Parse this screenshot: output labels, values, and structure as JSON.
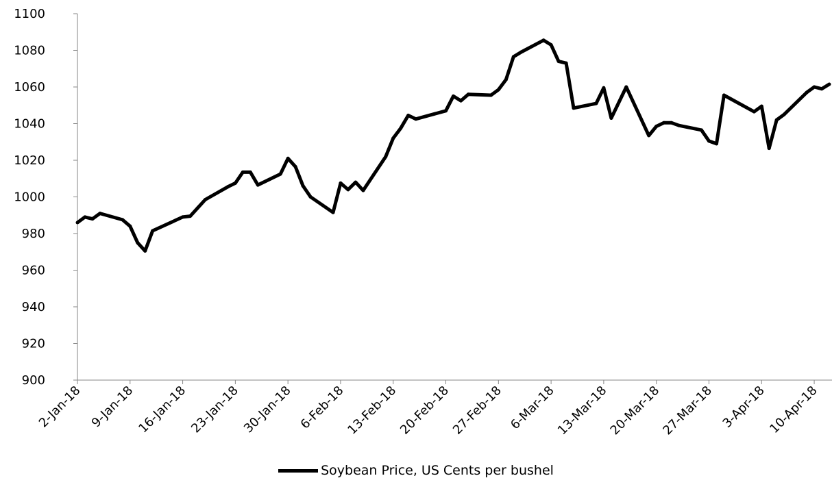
{
  "chart_data": {
    "type": "line",
    "title": "",
    "xlabel": "",
    "ylabel": "",
    "ylim": [
      900,
      1100
    ],
    "yticks": [
      900,
      920,
      940,
      960,
      980,
      1000,
      1020,
      1040,
      1060,
      1080,
      1100
    ],
    "xticks": [
      "2-Jan-18",
      "9-Jan-18",
      "16-Jan-18",
      "23-Jan-18",
      "30-Jan-18",
      "6-Feb-18",
      "13-Feb-18",
      "20-Feb-18",
      "27-Feb-18",
      "6-Mar-18",
      "13-Mar-18",
      "20-Mar-18",
      "27-Mar-18",
      "3-Apr-18",
      "10-Apr-18"
    ],
    "grid": false,
    "legend_position": "bottom",
    "series": [
      {
        "name": "Soybean Price, US Cents per bushel",
        "color": "#000000",
        "points": [
          [
            "2018-01-02",
            986
          ],
          [
            "2018-01-03",
            989
          ],
          [
            "2018-01-04",
            988
          ],
          [
            "2018-01-05",
            991
          ],
          [
            "2018-01-08",
            987.5
          ],
          [
            "2018-01-09",
            984
          ],
          [
            "2018-01-10",
            975
          ],
          [
            "2018-01-11",
            970.5
          ],
          [
            "2018-01-12",
            981.5
          ],
          [
            "2018-01-16",
            989
          ],
          [
            "2018-01-17",
            989.5
          ],
          [
            "2018-01-18",
            994
          ],
          [
            "2018-01-19",
            998.5
          ],
          [
            "2018-01-22",
            1005.5
          ],
          [
            "2018-01-23",
            1007.5
          ],
          [
            "2018-01-24",
            1013.5
          ],
          [
            "2018-01-25",
            1013.5
          ],
          [
            "2018-01-26",
            1006.5
          ],
          [
            "2018-01-29",
            1012.5
          ],
          [
            "2018-01-30",
            1021
          ],
          [
            "2018-01-31",
            1016.5
          ],
          [
            "2018-02-01",
            1006
          ],
          [
            "2018-02-02",
            1000
          ],
          [
            "2018-02-05",
            991.5
          ],
          [
            "2018-02-06",
            1007.5
          ],
          [
            "2018-02-07",
            1004
          ],
          [
            "2018-02-08",
            1008
          ],
          [
            "2018-02-09",
            1003.5
          ],
          [
            "2018-02-12",
            1022
          ],
          [
            "2018-02-13",
            1032
          ],
          [
            "2018-02-14",
            1037.5
          ],
          [
            "2018-02-15",
            1044.5
          ],
          [
            "2018-02-16",
            1042.5
          ],
          [
            "2018-02-20",
            1047
          ],
          [
            "2018-02-21",
            1055
          ],
          [
            "2018-02-22",
            1052.5
          ],
          [
            "2018-02-23",
            1056
          ],
          [
            "2018-02-26",
            1055.5
          ],
          [
            "2018-02-27",
            1058.5
          ],
          [
            "2018-02-28",
            1064
          ],
          [
            "2018-03-01",
            1076.5
          ],
          [
            "2018-03-02",
            1079
          ],
          [
            "2018-03-05",
            1085.5
          ],
          [
            "2018-03-06",
            1083
          ],
          [
            "2018-03-07",
            1074
          ],
          [
            "2018-03-08",
            1073
          ],
          [
            "2018-03-09",
            1048.5
          ],
          [
            "2018-03-12",
            1051
          ],
          [
            "2018-03-13",
            1059.5
          ],
          [
            "2018-03-14",
            1043
          ],
          [
            "2018-03-16",
            1060
          ],
          [
            "2018-03-19",
            1033.5
          ],
          [
            "2018-03-20",
            1038.5
          ],
          [
            "2018-03-21",
            1040.5
          ],
          [
            "2018-03-22",
            1040.5
          ],
          [
            "2018-03-23",
            1039
          ],
          [
            "2018-03-26",
            1036.5
          ],
          [
            "2018-03-27",
            1030.5
          ],
          [
            "2018-03-28",
            1029
          ],
          [
            "2018-03-29",
            1055.5
          ],
          [
            "2018-04-02",
            1046.5
          ],
          [
            "2018-04-03",
            1049.5
          ],
          [
            "2018-04-04",
            1026.5
          ],
          [
            "2018-04-05",
            1042
          ],
          [
            "2018-04-06",
            1045
          ],
          [
            "2018-04-09",
            1057
          ],
          [
            "2018-04-10",
            1060
          ],
          [
            "2018-04-11",
            1059
          ],
          [
            "2018-04-12",
            1061.5
          ]
        ]
      }
    ]
  }
}
